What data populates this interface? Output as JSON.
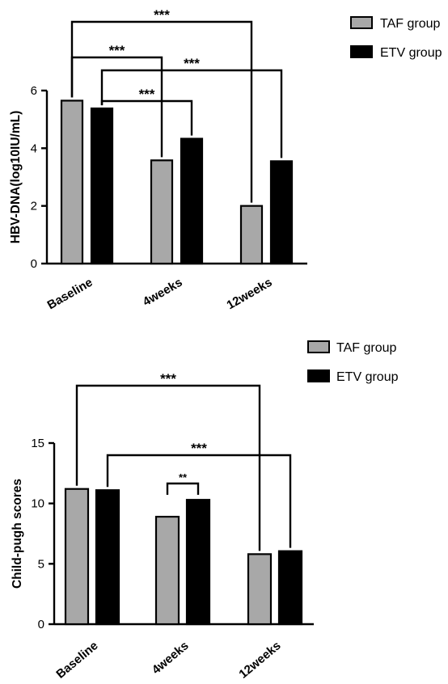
{
  "chart_data": [
    {
      "type": "bar",
      "categories": [
        "Baseline",
        "4weeks",
        "12weeks"
      ],
      "series": [
        {
          "name": "TAF group",
          "values": [
            5.65,
            3.58,
            2.0
          ]
        },
        {
          "name": "ETV group",
          "values": [
            5.38,
            4.33,
            3.55
          ]
        }
      ],
      "title": "",
      "xlabel": "",
      "ylabel": "HBV-DNA(log10IU/mL)",
      "ylim": [
        0,
        6
      ],
      "yticks": [
        0,
        2,
        4,
        6
      ],
      "legend": "top-right",
      "annotations": [
        {
          "text": "***",
          "from": "Baseline TAF group",
          "to": "12weeks TAF group"
        },
        {
          "text": "***",
          "from": "Baseline TAF group",
          "to": "4weeks TAF group"
        },
        {
          "text": "***",
          "from": "Baseline ETV group",
          "to": "12weeks ETV group"
        },
        {
          "text": "***",
          "from": "Baseline ETV group",
          "to": "4weeks ETV group"
        }
      ]
    },
    {
      "type": "bar",
      "categories": [
        "Baseline",
        "4weeks",
        "12weeks"
      ],
      "series": [
        {
          "name": "TAF group",
          "values": [
            11.2,
            8.9,
            5.8
          ]
        },
        {
          "name": "ETV group",
          "values": [
            11.1,
            10.3,
            6.05
          ]
        }
      ],
      "title": "",
      "xlabel": "",
      "ylabel": "Child-pugh scores",
      "ylim": [
        0,
        15
      ],
      "yticks": [
        0,
        5,
        10,
        15
      ],
      "legend": "top-right",
      "annotations": [
        {
          "text": "***",
          "from": "Baseline TAF group",
          "to": "12weeks TAF group"
        },
        {
          "text": "***",
          "from": "Baseline ETV group",
          "to": "12weeks ETV group"
        },
        {
          "text": "**",
          "from": "4weeks TAF group",
          "to": "4weeks ETV group"
        }
      ]
    }
  ],
  "colors": {
    "taf": "#a8a8a8",
    "etv": "#000000"
  }
}
